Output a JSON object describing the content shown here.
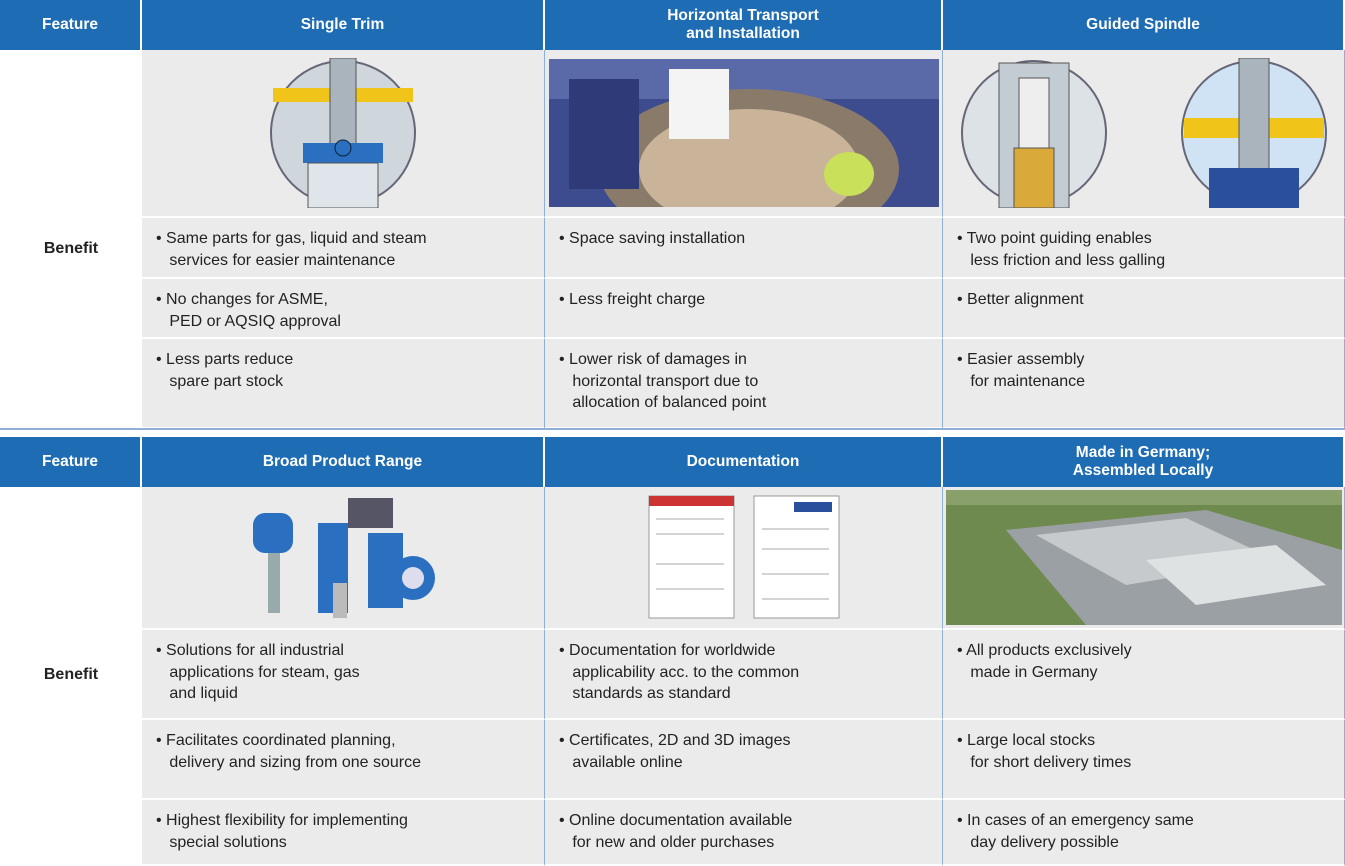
{
  "tables": [
    {
      "header": [
        "Feature",
        "Single Trim",
        "Horizontal Transport\nand Installation",
        "Guided Spindle"
      ],
      "row_label": "Benefit",
      "rows": [
        [
          "• Same parts for gas, liquid and steam\n   services for easier maintenance",
          "• Space saving installation",
          "• Two point guiding enables\n   less friction and less galling"
        ],
        [
          "• No changes for ASME,\n   PED or AQSIQ approval",
          "• Less freight charge",
          "• Better alignment"
        ],
        [
          "• Less parts reduce\n   spare part stock",
          "• Lower risk of damages in\n   horizontal transport due to\n   allocation of balanced point",
          "• Easier assembly\n   for maintenance"
        ]
      ]
    },
    {
      "header": [
        "Feature",
        "Broad Product Range",
        "Documentation",
        "Made in Germany;\nAssembled Locally"
      ],
      "row_label": "Benefit",
      "rows": [
        [
          "• Solutions for all industrial\n   applications for steam, gas\n   and liquid",
          "• Documentation for worldwide\n   applicability acc. to the common\n   standards as standard",
          "• All products exclusively\n   made in Germany"
        ],
        [
          "• Facilitates coordinated planning,\n   delivery and sizing from one source",
          "• Certificates, 2D and 3D images\n   available online",
          "• Large local stocks\n   for short delivery times"
        ],
        [
          "• Highest flexibility for implementing\n   special solutions",
          "• Online documentation available\n   for new and older purchases",
          "• In cases of an emergency same\n   day delivery possible"
        ]
      ]
    }
  ]
}
